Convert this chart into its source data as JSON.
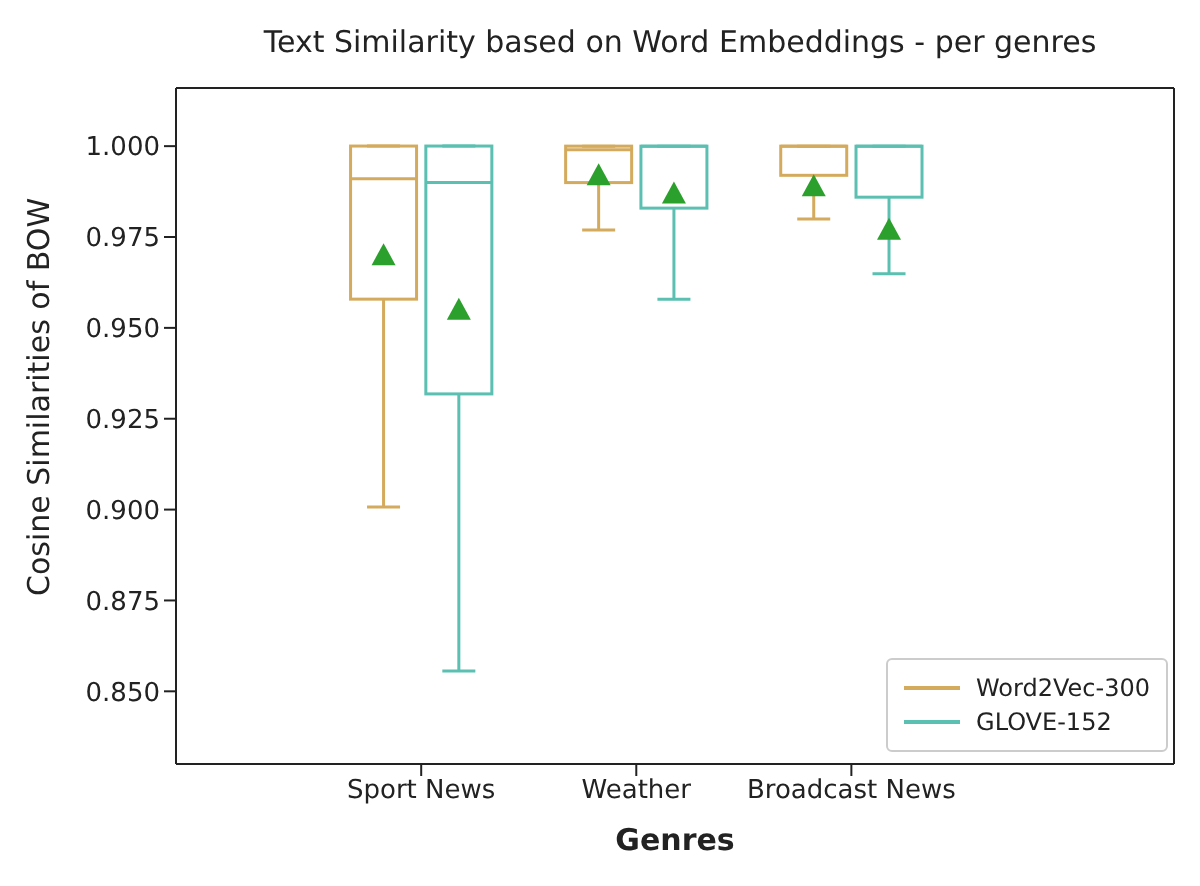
{
  "chart_data": {
    "type": "box",
    "title": "Text Similarity based on Word Embeddings - per genres",
    "xlabel": "Genres",
    "ylabel": "Cosine Similarities of BOW",
    "categories": [
      "Sport News",
      "Weather",
      "Broadcast News"
    ],
    "series": [
      {
        "name": "Word2Vec-300",
        "color": "#d4aa5c",
        "boxes": [
          {
            "low": 0.901,
            "q1": 0.958,
            "median": 0.991,
            "q3": 1.0,
            "high": 1.0,
            "mean": 0.97
          },
          {
            "low": 0.977,
            "q1": 0.99,
            "median": 0.999,
            "q3": 1.0,
            "high": 1.0,
            "mean": 0.992
          },
          {
            "low": 0.98,
            "q1": 0.992,
            "median": 1.0,
            "q3": 1.0,
            "high": 1.0,
            "mean": 0.989
          }
        ]
      },
      {
        "name": "GLOVE-152",
        "color": "#5bbfb1",
        "boxes": [
          {
            "low": 0.856,
            "q1": 0.932,
            "median": 0.99,
            "q3": 1.0,
            "high": 1.0,
            "mean": 0.955
          },
          {
            "low": 0.958,
            "q1": 0.983,
            "median": 1.0,
            "q3": 1.0,
            "high": 1.0,
            "mean": 0.987
          },
          {
            "low": 0.965,
            "q1": 0.986,
            "median": 1.0,
            "q3": 1.0,
            "high": 1.0,
            "mean": 0.977
          }
        ]
      }
    ],
    "ylim": [
      0.83,
      1.016
    ],
    "yticks": [
      {
        "value": 0.85,
        "label": "0.850"
      },
      {
        "value": 0.875,
        "label": "0.875"
      },
      {
        "value": 0.9,
        "label": "0.900"
      },
      {
        "value": 0.925,
        "label": "0.925"
      },
      {
        "value": 0.95,
        "label": "0.950"
      },
      {
        "value": 0.975,
        "label": "0.975"
      },
      {
        "value": 1.0,
        "label": "1.000"
      }
    ],
    "legend": "bottom right",
    "grid": false
  }
}
